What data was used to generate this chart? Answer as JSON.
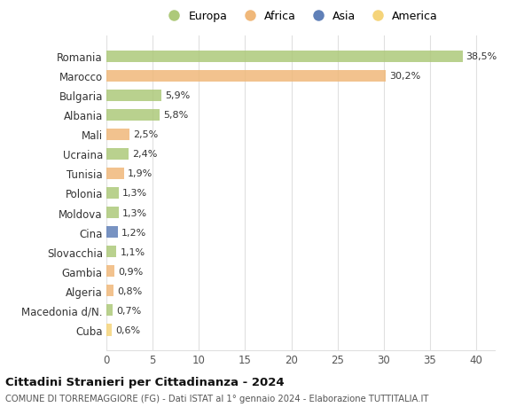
{
  "countries": [
    "Romania",
    "Marocco",
    "Bulgaria",
    "Albania",
    "Mali",
    "Ucraina",
    "Tunisia",
    "Polonia",
    "Moldova",
    "Cina",
    "Slovacchia",
    "Gambia",
    "Algeria",
    "Macedonia d/N.",
    "Cuba"
  ],
  "values": [
    38.5,
    30.2,
    5.9,
    5.8,
    2.5,
    2.4,
    1.9,
    1.3,
    1.3,
    1.2,
    1.1,
    0.9,
    0.8,
    0.7,
    0.6
  ],
  "labels": [
    "38,5%",
    "30,2%",
    "5,9%",
    "5,8%",
    "2,5%",
    "2,4%",
    "1,9%",
    "1,3%",
    "1,3%",
    "1,2%",
    "1,1%",
    "0,9%",
    "0,8%",
    "0,7%",
    "0,6%"
  ],
  "colors": [
    "#adc97a",
    "#f0b87a",
    "#adc97a",
    "#adc97a",
    "#f0b87a",
    "#adc97a",
    "#f0b87a",
    "#adc97a",
    "#adc97a",
    "#6080b8",
    "#adc97a",
    "#f0b87a",
    "#f0b87a",
    "#adc97a",
    "#f5d47a"
  ],
  "legend_labels": [
    "Europa",
    "Africa",
    "Asia",
    "America"
  ],
  "legend_colors": [
    "#adc97a",
    "#f0b87a",
    "#6080b8",
    "#f5d47a"
  ],
  "title": "Cittadini Stranieri per Cittadinanza - 2024",
  "subtitle": "COMUNE DI TORREMAGGIORE (FG) - Dati ISTAT al 1° gennaio 2024 - Elaborazione TUTTITALIA.IT",
  "xlim": [
    0,
    42
  ],
  "xticks": [
    0,
    5,
    10,
    15,
    20,
    25,
    30,
    35,
    40
  ],
  "bg_color": "#ffffff",
  "grid_color": "#e0e0e0"
}
